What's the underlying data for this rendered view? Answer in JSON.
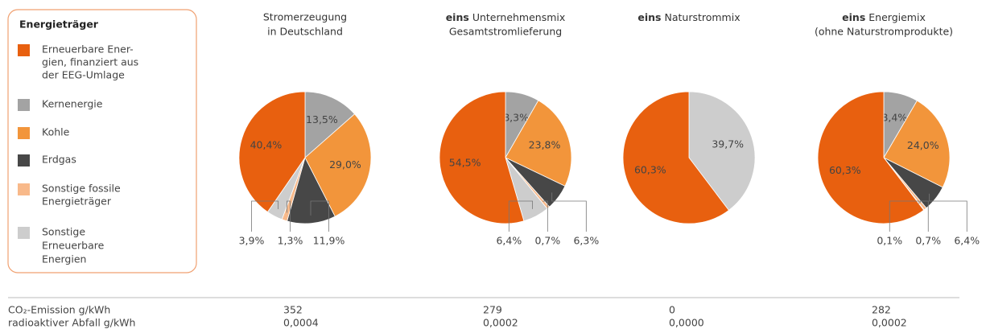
{
  "legend": {
    "title": "Energieträger",
    "items": [
      {
        "lines": [
          "Erneuerbare Ener-",
          "gien, finanziert aus",
          "der EEG-Umlage"
        ],
        "color": "#e8600f"
      },
      {
        "lines": [
          "Kernenergie"
        ],
        "color": "#a3a3a3"
      },
      {
        "lines": [
          "Kohle"
        ],
        "color": "#f2953b"
      },
      {
        "lines": [
          "Erdgas"
        ],
        "color": "#474747"
      },
      {
        "lines": [
          "Sonstige fossile",
          "Energieträger"
        ],
        "color": "#f8b98a"
      },
      {
        "lines": [
          "Sonstige",
          "Erneuerbare",
          "Energien"
        ],
        "color": "#cdcdcd"
      }
    ]
  },
  "chart_data": [
    {
      "type": "pie",
      "title_lines": [
        "Stromerzeugung",
        "in Deutschland"
      ],
      "values": [
        40.4,
        13.5,
        29.0,
        11.9,
        1.3,
        3.9
      ],
      "value_labels": [
        "40,4%",
        "13,5%",
        "29,0%",
        "11,9%",
        "1,3%",
        "3,9%"
      ]
    },
    {
      "type": "pie",
      "title_brand": "eins",
      "title_lines": [
        "Unternehmensmix",
        "Gesamtstromlieferung"
      ],
      "values": [
        54.5,
        8.3,
        23.8,
        6.3,
        0.7,
        6.4
      ],
      "value_labels": [
        "54,5%",
        "8,3%",
        "23,8%",
        "6,3%",
        "0,7%",
        "6,4%"
      ]
    },
    {
      "type": "pie",
      "title_brand": "eins",
      "title_lines": [
        "Naturstrommix"
      ],
      "values": [
        60.3,
        null,
        null,
        null,
        null,
        39.7
      ],
      "value_labels": [
        "60,3%",
        null,
        null,
        null,
        null,
        "39,7%"
      ]
    },
    {
      "type": "pie",
      "title_brand": "eins",
      "title_lines": [
        "Energiemix",
        "(ohne Naturstromprodukte)"
      ],
      "values": [
        60.3,
        8.4,
        24.0,
        6.4,
        0.7,
        0.1
      ],
      "value_labels": [
        "60,3%",
        "8,4%",
        "24,0%",
        "6,4%",
        "0,7%",
        "0,1%"
      ]
    }
  ],
  "table": {
    "rows": [
      {
        "label": "CO₂-Emission g/kWh",
        "cells": [
          "352",
          "279",
          "0",
          "282"
        ]
      },
      {
        "label": "radioaktiver Abfall g/kWh",
        "cells": [
          "0,0004",
          "0,0002",
          "0,0000",
          "0,0002"
        ]
      }
    ]
  }
}
